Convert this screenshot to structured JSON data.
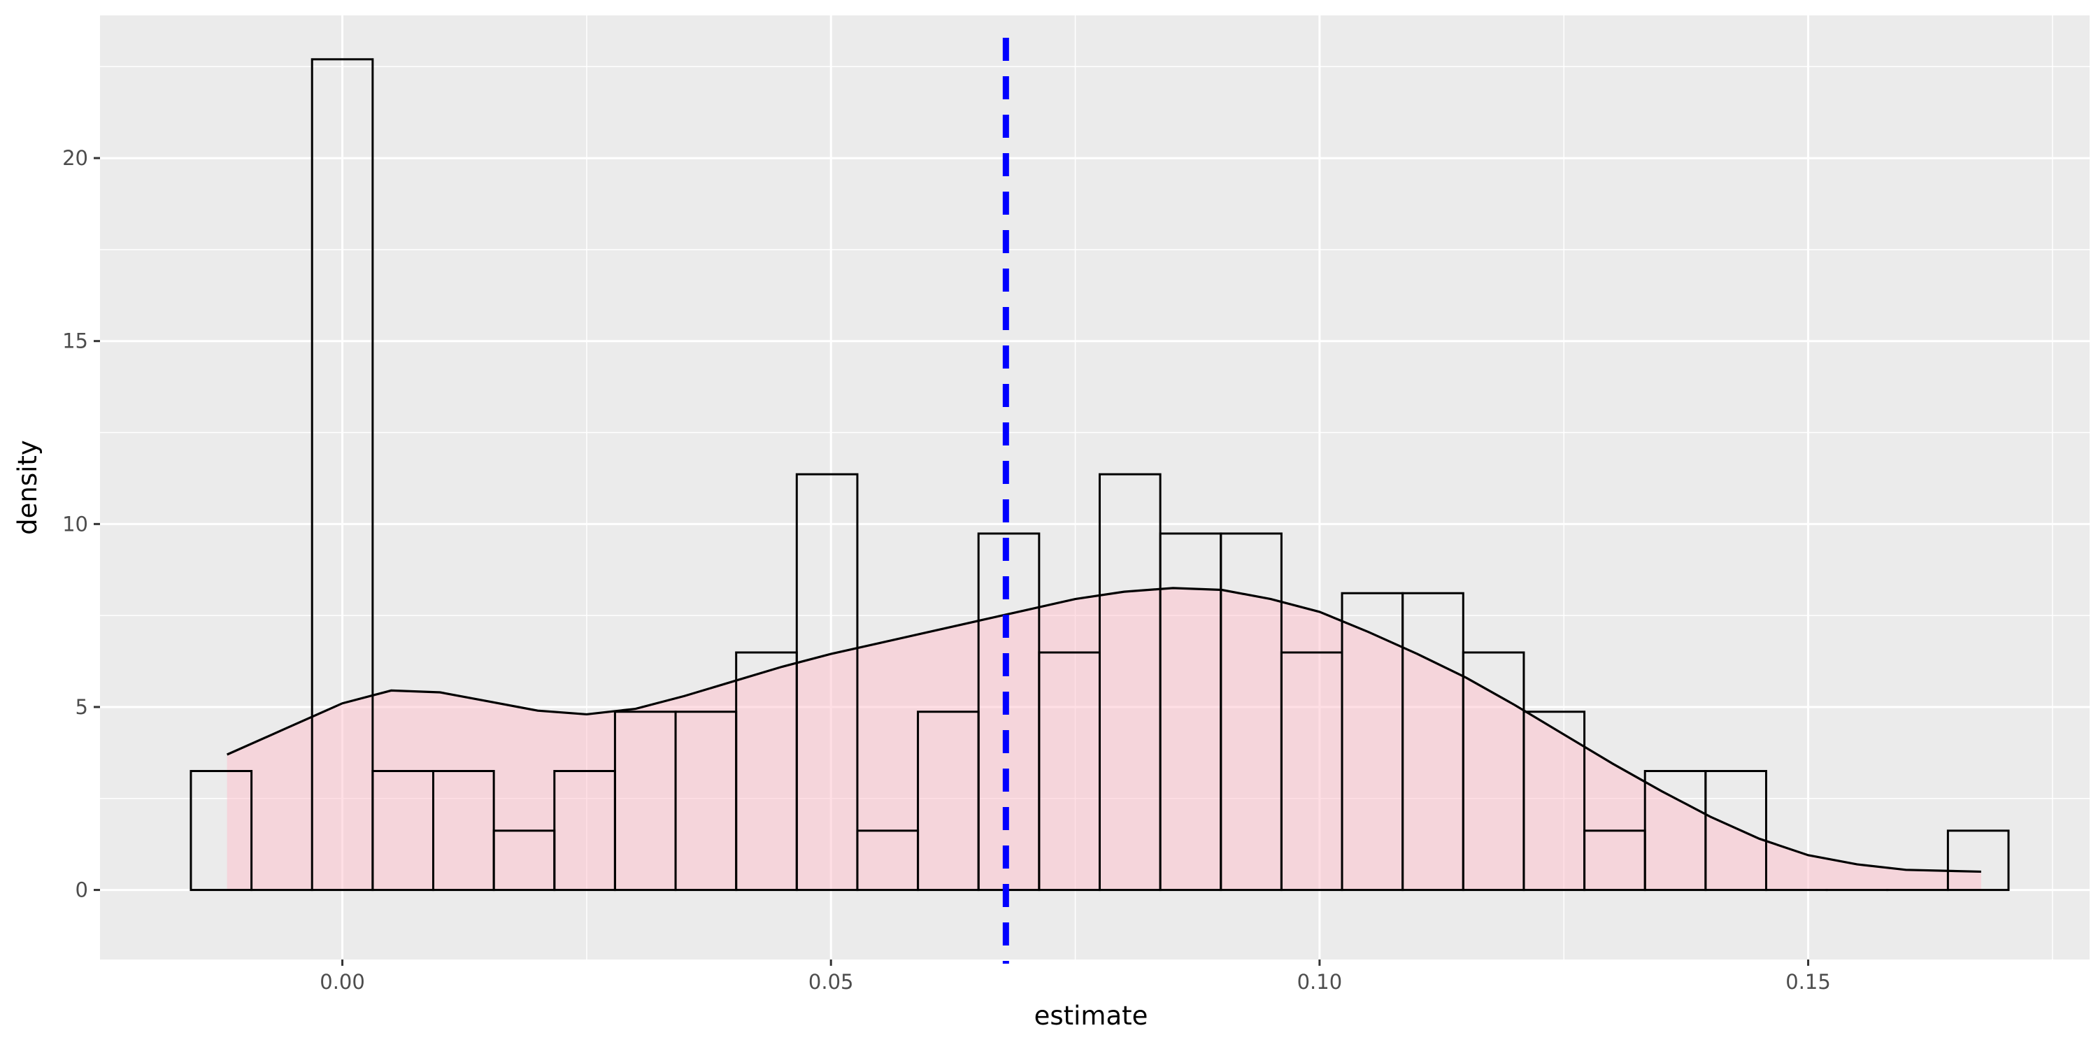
{
  "chart_data": {
    "type": "histogram",
    "title": "",
    "xlabel": "estimate",
    "ylabel": "density",
    "xlim": [
      -0.0248,
      0.1788
    ],
    "ylim": [
      -1.9,
      23.9
    ],
    "x_ticks": [
      0.0,
      0.05,
      0.1,
      0.15
    ],
    "x_tick_labels": [
      "0.00",
      "0.05",
      "0.10",
      "0.15"
    ],
    "y_ticks": [
      0,
      5,
      10,
      15,
      20
    ],
    "y_tick_labels": [
      "0",
      "5",
      "10",
      "15",
      "20"
    ],
    "grid": true,
    "histogram": {
      "bin_width": 0.0062,
      "bin_start": -0.0155,
      "values": [
        3.25,
        0,
        22.7,
        3.25,
        3.25,
        1.62,
        3.25,
        4.87,
        4.87,
        6.49,
        11.36,
        1.62,
        4.87,
        9.74,
        6.49,
        11.36,
        9.74,
        9.74,
        6.49,
        8.11,
        8.11,
        6.49,
        4.87,
        1.62,
        3.25,
        3.25,
        0,
        0,
        0,
        1.62
      ],
      "fill": "#ffffff",
      "outline": "#000000"
    },
    "density": {
      "x": [
        -0.0118,
        -0.0059,
        0.0,
        0.005,
        0.01,
        0.015,
        0.02,
        0.025,
        0.03,
        0.035,
        0.04,
        0.045,
        0.05,
        0.055,
        0.06,
        0.065,
        0.07,
        0.075,
        0.08,
        0.085,
        0.09,
        0.095,
        0.1,
        0.105,
        0.11,
        0.115,
        0.12,
        0.125,
        0.13,
        0.135,
        0.14,
        0.145,
        0.15,
        0.155,
        0.16,
        0.1677
      ],
      "y": [
        3.7,
        4.4,
        5.1,
        5.45,
        5.4,
        5.15,
        4.9,
        4.8,
        4.95,
        5.3,
        5.7,
        6.1,
        6.45,
        6.75,
        7.05,
        7.35,
        7.65,
        7.95,
        8.15,
        8.25,
        8.2,
        7.95,
        7.6,
        7.05,
        6.45,
        5.8,
        5.05,
        4.25,
        3.45,
        2.7,
        2.0,
        1.4,
        0.95,
        0.7,
        0.55,
        0.5
      ],
      "fill": "#ffc0cb",
      "fill_opacity": 0.5,
      "line": "#000000"
    },
    "vline": {
      "x": 0.0679,
      "color": "#0000ff",
      "style": "dashed"
    },
    "colors": {
      "panel": "#ebebeb",
      "grid": "#ffffff",
      "tick": "#333333"
    }
  }
}
